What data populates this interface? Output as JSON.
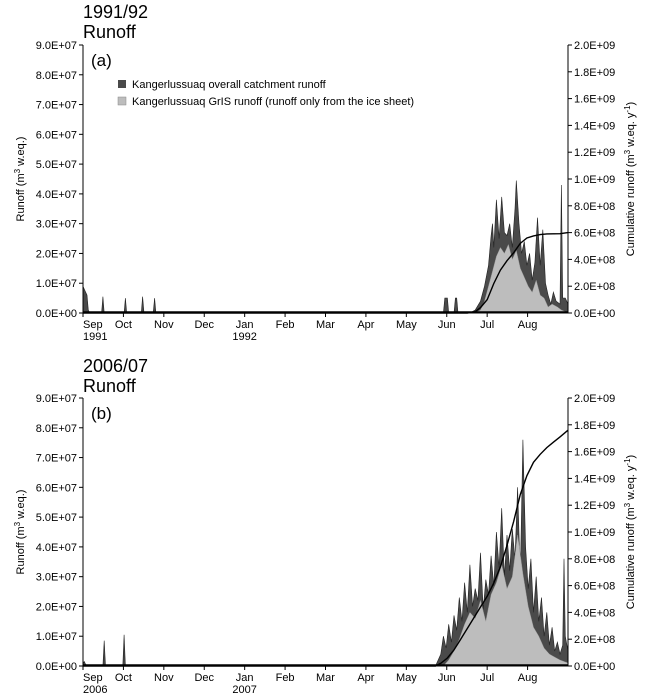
{
  "colors": {
    "overall": "#4a4a4a",
    "gris": "#bdbdbd",
    "cumulative": "#000000",
    "axis": "#000000"
  },
  "legend": {
    "overall": "Kangerlussuaq overall catchment runoff",
    "gris": "Kangerlussuaq GrIS runoff (runoff only from the ice sheet)"
  },
  "chart_data": [
    {
      "type": "area",
      "panel_label": "(a)",
      "title": "1991/92",
      "subtitle": "Runoff",
      "ylabel_left": "Runoff (m",
      "ylabel_right": "Cumulative runoff (m",
      "ylim_left": [
        0,
        90000000
      ],
      "ylim_right": [
        0,
        2000000000
      ],
      "yticks_left": [
        "0.0E+00",
        "1.0E+07",
        "2.0E+07",
        "3.0E+07",
        "4.0E+07",
        "5.0E+07",
        "6.0E+07",
        "7.0E+07",
        "8.0E+07",
        "9.0E+07"
      ],
      "yticks_right": [
        "0.0E+00",
        "2.0E+08",
        "4.0E+08",
        "6.0E+08",
        "8.0E+08",
        "1.0E+09",
        "1.2E+09",
        "1.4E+09",
        "1.6E+09",
        "1.8E+09",
        "2.0E+09"
      ],
      "xticks": [
        "Sep",
        "Oct",
        "Nov",
        "Dec",
        "Jan",
        "Feb",
        "Mar",
        "Apr",
        "May",
        "Jun",
        "Jul",
        "Aug"
      ],
      "xsub": [
        {
          "label": "1991",
          "index": 0
        },
        {
          "label": "1992",
          "index": 4
        }
      ],
      "xlim_days": [
        0,
        366
      ],
      "legend_position": "top-left",
      "overall_runoff": [
        [
          0,
          9000000.0
        ],
        [
          1,
          8000000.0
        ],
        [
          3,
          6000000.0
        ],
        [
          4,
          1000000.0
        ],
        [
          5,
          0
        ],
        [
          14,
          0
        ],
        [
          15,
          5500000.0
        ],
        [
          16,
          0
        ],
        [
          31,
          0
        ],
        [
          32,
          5000000.0
        ],
        [
          33,
          0
        ],
        [
          44,
          0
        ],
        [
          45,
          5500000.0
        ],
        [
          46,
          0
        ],
        [
          53,
          0
        ],
        [
          54,
          5000000.0
        ],
        [
          55,
          0
        ],
        [
          272,
          0
        ],
        [
          273,
          5000000.0
        ],
        [
          275,
          5000000.0
        ],
        [
          276,
          0
        ],
        [
          280,
          0
        ],
        [
          281,
          5000000.0
        ],
        [
          282,
          5000000.0
        ],
        [
          283,
          0
        ],
        [
          292,
          0
        ],
        [
          296,
          1000000.0
        ],
        [
          300,
          4000000.0
        ],
        [
          303,
          9000000.0
        ],
        [
          306,
          16000000.0
        ],
        [
          308,
          26000000.0
        ],
        [
          309,
          30000000.0
        ],
        [
          310,
          22000000.0
        ],
        [
          312,
          38000000.0
        ],
        [
          314,
          25000000.0
        ],
        [
          316,
          39000000.0
        ],
        [
          318,
          27000000.0
        ],
        [
          320,
          26000000.0
        ],
        [
          322,
          30000000.0
        ],
        [
          324,
          22000000.0
        ],
        [
          326,
          35000000.0
        ],
        [
          327,
          44500000.0
        ],
        [
          329,
          30000000.0
        ],
        [
          331,
          20000000.0
        ],
        [
          333,
          24000000.0
        ],
        [
          335,
          16000000.0
        ],
        [
          337,
          20000000.0
        ],
        [
          339,
          11000000.0
        ],
        [
          341,
          17000000.0
        ],
        [
          343,
          32000000.0
        ],
        [
          345,
          16000000.0
        ],
        [
          347,
          28000000.0
        ],
        [
          349,
          10000000.0
        ],
        [
          351,
          6000000.0
        ],
        [
          353,
          3000000.0
        ],
        [
          355,
          7000000.0
        ],
        [
          357,
          4000000.0
        ],
        [
          360,
          3000000.0
        ],
        [
          361,
          43000000.0
        ],
        [
          362,
          5000000.0
        ],
        [
          364,
          5000000.0
        ],
        [
          366,
          3000000.0
        ]
      ],
      "gris_runoff": [
        [
          296,
          0
        ],
        [
          300,
          1000000.0
        ],
        [
          303,
          4000000.0
        ],
        [
          306,
          9000000.0
        ],
        [
          309,
          14000000.0
        ],
        [
          312,
          19000000.0
        ],
        [
          315,
          22000000.0
        ],
        [
          318,
          20000000.0
        ],
        [
          321,
          23000000.0
        ],
        [
          324,
          18000000.0
        ],
        [
          327,
          21000000.0
        ],
        [
          330,
          15000000.0
        ],
        [
          333,
          12000000.0
        ],
        [
          336,
          9000000.0
        ],
        [
          339,
          7000000.0
        ],
        [
          342,
          11000000.0
        ],
        [
          345,
          6000000.0
        ],
        [
          348,
          5000000.0
        ],
        [
          351,
          2000000.0
        ],
        [
          354,
          3000000.0
        ],
        [
          358,
          2000000.0
        ],
        [
          361,
          1000000.0
        ],
        [
          366,
          0
        ]
      ],
      "cumulative": [
        [
          0,
          0
        ],
        [
          290,
          0
        ],
        [
          296,
          10000000.0
        ],
        [
          300,
          40000000.0
        ],
        [
          305,
          100000000.0
        ],
        [
          310,
          220000000.0
        ],
        [
          315,
          320000000.0
        ],
        [
          320,
          390000000.0
        ],
        [
          325,
          450000000.0
        ],
        [
          330,
          520000000.0
        ],
        [
          335,
          560000000.0
        ],
        [
          340,
          575000000.0
        ],
        [
          345,
          585000000.0
        ],
        [
          350,
          590000000.0
        ],
        [
          360,
          592000000.0
        ],
        [
          366,
          600000000.0
        ]
      ]
    },
    {
      "type": "area",
      "panel_label": "(b)",
      "title": "2006/07",
      "subtitle": "Runoff",
      "ylabel_left": "Runoff (m",
      "ylabel_right": "Cumulative runoff (m",
      "ylim_left": [
        0,
        90000000
      ],
      "ylim_right": [
        0,
        2000000000
      ],
      "yticks_left": [
        "0.0E+00",
        "1.0E+07",
        "2.0E+07",
        "3.0E+07",
        "4.0E+07",
        "5.0E+07",
        "6.0E+07",
        "7.0E+07",
        "8.0E+07",
        "9.0E+07"
      ],
      "yticks_right": [
        "0.0E+00",
        "2.0E+08",
        "4.0E+08",
        "6.0E+08",
        "8.0E+08",
        "1.0E+09",
        "1.2E+09",
        "1.4E+09",
        "1.6E+09",
        "1.8E+09",
        "2.0E+09"
      ],
      "xticks": [
        "Sep",
        "Oct",
        "Nov",
        "Dec",
        "Jan",
        "Feb",
        "Mar",
        "Apr",
        "May",
        "Jun",
        "Jul",
        "Aug"
      ],
      "xsub": [
        {
          "label": "2006",
          "index": 0
        },
        {
          "label": "2007",
          "index": 4
        }
      ],
      "xlim_days": [
        0,
        366
      ],
      "overall_runoff": [
        [
          0,
          1000000.0
        ],
        [
          1,
          1500000.0
        ],
        [
          2,
          500000.0
        ],
        [
          5,
          0
        ],
        [
          15,
          0
        ],
        [
          16,
          8500000.0
        ],
        [
          17,
          0
        ],
        [
          30,
          0
        ],
        [
          31,
          10500000.0
        ],
        [
          32,
          0
        ],
        [
          266,
          0
        ],
        [
          270,
          4000000.0
        ],
        [
          272,
          10000000.0
        ],
        [
          274,
          6000000.0
        ],
        [
          276,
          14000000.0
        ],
        [
          278,
          8000000.0
        ],
        [
          280,
          17000000.0
        ],
        [
          282,
          12000000.0
        ],
        [
          284,
          23000000.0
        ],
        [
          286,
          15000000.0
        ],
        [
          288,
          28000000.0
        ],
        [
          290,
          18000000.0
        ],
        [
          292,
          34000000.0
        ],
        [
          294,
          20000000.0
        ],
        [
          296,
          26000000.0
        ],
        [
          298,
          22000000.0
        ],
        [
          300,
          38000000.0
        ],
        [
          302,
          19000000.0
        ],
        [
          304,
          29000000.0
        ],
        [
          306,
          24000000.0
        ],
        [
          308,
          37000000.0
        ],
        [
          310,
          27000000.0
        ],
        [
          312,
          45000000.0
        ],
        [
          314,
          33000000.0
        ],
        [
          316,
          53000000.0
        ],
        [
          318,
          30000000.0
        ],
        [
          320,
          44000000.0
        ],
        [
          322,
          32000000.0
        ],
        [
          324,
          46000000.0
        ],
        [
          326,
          36000000.0
        ],
        [
          328,
          60000000.0
        ],
        [
          330,
          30000000.0
        ],
        [
          332,
          76000000.0
        ],
        [
          334,
          40000000.0
        ],
        [
          336,
          26000000.0
        ],
        [
          338,
          36000000.0
        ],
        [
          340,
          18000000.0
        ],
        [
          342,
          30000000.0
        ],
        [
          344,
          15000000.0
        ],
        [
          346,
          23000000.0
        ],
        [
          348,
          10000000.0
        ],
        [
          350,
          18000000.0
        ],
        [
          352,
          7000000.0
        ],
        [
          354,
          13000000.0
        ],
        [
          356,
          5000000.0
        ],
        [
          358,
          8000000.0
        ],
        [
          360,
          4000000.0
        ],
        [
          362,
          7000000.0
        ],
        [
          363,
          36000000.0
        ],
        [
          364,
          10000000.0
        ],
        [
          366,
          5000000.0
        ]
      ],
      "gris_runoff": [
        [
          272,
          0
        ],
        [
          276,
          2000000.0
        ],
        [
          280,
          5000000.0
        ],
        [
          284,
          9000000.0
        ],
        [
          288,
          14000000.0
        ],
        [
          292,
          18000000.0
        ],
        [
          296,
          16000000.0
        ],
        [
          300,
          22000000.0
        ],
        [
          304,
          15000000.0
        ],
        [
          308,
          24000000.0
        ],
        [
          312,
          28000000.0
        ],
        [
          316,
          34000000.0
        ],
        [
          320,
          26000000.0
        ],
        [
          324,
          30000000.0
        ],
        [
          328,
          44000000.0
        ],
        [
          332,
          31000000.0
        ],
        [
          336,
          20000000.0
        ],
        [
          340,
          13000000.0
        ],
        [
          344,
          10000000.0
        ],
        [
          348,
          6000000.0
        ],
        [
          352,
          4000000.0
        ],
        [
          356,
          3000000.0
        ],
        [
          360,
          2000000.0
        ],
        [
          366,
          1000000.0
        ]
      ],
      "cumulative": [
        [
          0,
          0
        ],
        [
          266,
          0
        ],
        [
          270,
          20000000.0
        ],
        [
          275,
          60000000.0
        ],
        [
          280,
          120000000.0
        ],
        [
          285,
          200000000.0
        ],
        [
          290,
          280000000.0
        ],
        [
          295,
          360000000.0
        ],
        [
          300,
          440000000.0
        ],
        [
          305,
          520000000.0
        ],
        [
          310,
          620000000.0
        ],
        [
          315,
          740000000.0
        ],
        [
          320,
          900000000.0
        ],
        [
          325,
          1080000000.0
        ],
        [
          330,
          1280000000.0
        ],
        [
          335,
          1420000000.0
        ],
        [
          340,
          1520000000.0
        ],
        [
          345,
          1580000000.0
        ],
        [
          350,
          1630000000.0
        ],
        [
          355,
          1670000000.0
        ],
        [
          360,
          1710000000.0
        ],
        [
          366,
          1760000000.0
        ]
      ]
    }
  ]
}
